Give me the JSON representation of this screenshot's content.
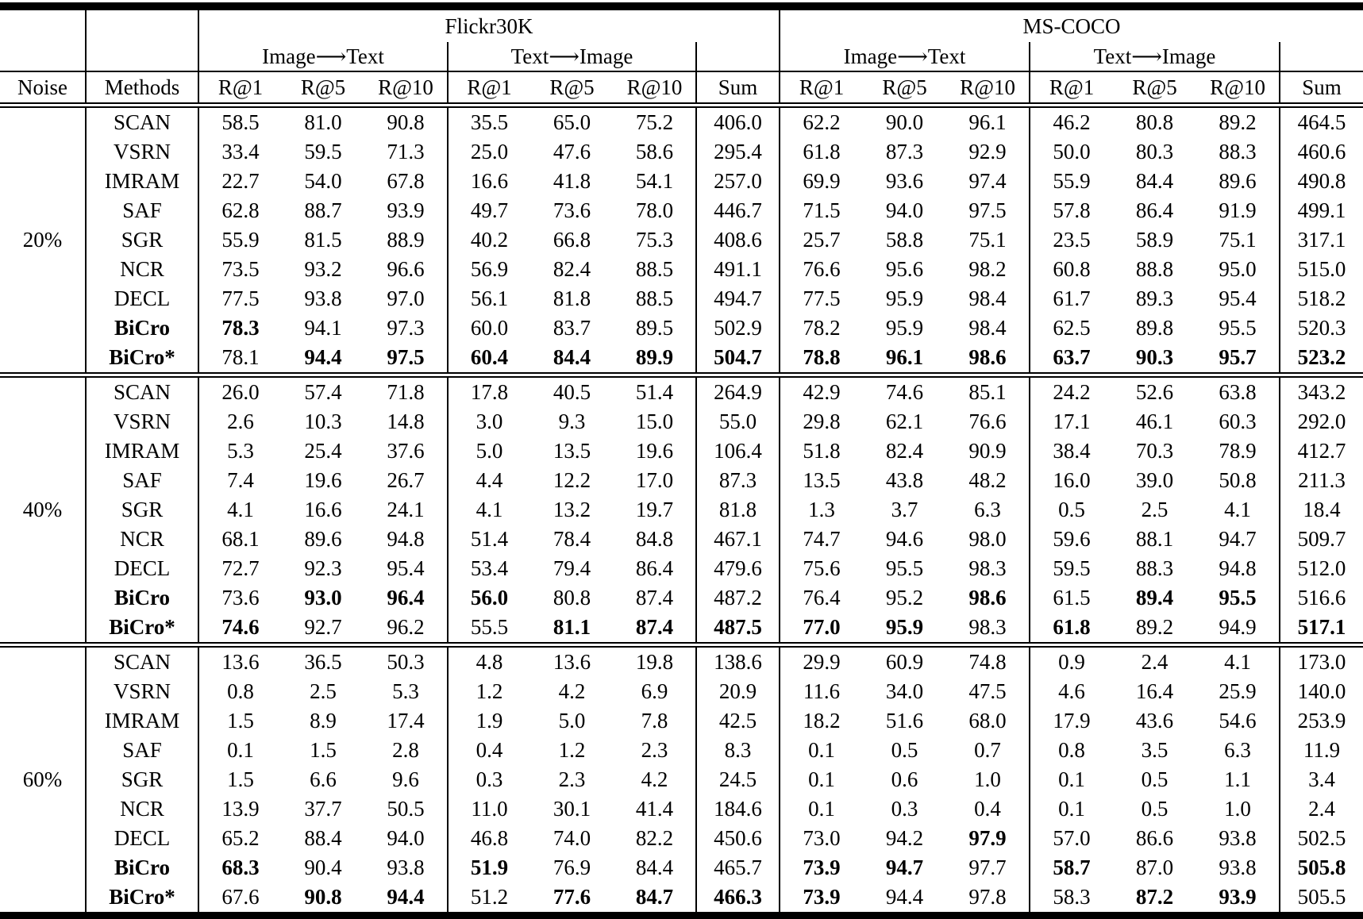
{
  "datasets": [
    "Flickr30K",
    "MS-COCO"
  ],
  "header": {
    "noise": "Noise",
    "methods": "Methods",
    "image_to_text": "Image⟶Text",
    "text_to_image": "Text⟶Image",
    "r1": "R@1",
    "r5": "R@5",
    "r10": "R@10",
    "sum": "Sum"
  },
  "blocks": [
    {
      "noise": "20%",
      "rows": [
        {
          "method": "SCAN",
          "bold_method": false,
          "values": [
            "58.5",
            "81.0",
            "90.8",
            "35.5",
            "65.0",
            "75.2",
            "406.0",
            "62.2",
            "90.0",
            "96.1",
            "46.2",
            "80.8",
            "89.2",
            "464.5"
          ],
          "bold": []
        },
        {
          "method": "VSRN",
          "bold_method": false,
          "values": [
            "33.4",
            "59.5",
            "71.3",
            "25.0",
            "47.6",
            "58.6",
            "295.4",
            "61.8",
            "87.3",
            "92.9",
            "50.0",
            "80.3",
            "88.3",
            "460.6"
          ],
          "bold": []
        },
        {
          "method": "IMRAM",
          "bold_method": false,
          "values": [
            "22.7",
            "54.0",
            "67.8",
            "16.6",
            "41.8",
            "54.1",
            "257.0",
            "69.9",
            "93.6",
            "97.4",
            "55.9",
            "84.4",
            "89.6",
            "490.8"
          ],
          "bold": []
        },
        {
          "method": "SAF",
          "bold_method": false,
          "values": [
            "62.8",
            "88.7",
            "93.9",
            "49.7",
            "73.6",
            "78.0",
            "446.7",
            "71.5",
            "94.0",
            "97.5",
            "57.8",
            "86.4",
            "91.9",
            "499.1"
          ],
          "bold": []
        },
        {
          "method": "SGR",
          "bold_method": false,
          "values": [
            "55.9",
            "81.5",
            "88.9",
            "40.2",
            "66.8",
            "75.3",
            "408.6",
            "25.7",
            "58.8",
            "75.1",
            "23.5",
            "58.9",
            "75.1",
            "317.1"
          ],
          "bold": []
        },
        {
          "method": "NCR",
          "bold_method": false,
          "values": [
            "73.5",
            "93.2",
            "96.6",
            "56.9",
            "82.4",
            "88.5",
            "491.1",
            "76.6",
            "95.6",
            "98.2",
            "60.8",
            "88.8",
            "95.0",
            "515.0"
          ],
          "bold": []
        },
        {
          "method": "DECL",
          "bold_method": false,
          "values": [
            "77.5",
            "93.8",
            "97.0",
            "56.1",
            "81.8",
            "88.5",
            "494.7",
            "77.5",
            "95.9",
            "98.4",
            "61.7",
            "89.3",
            "95.4",
            "518.2"
          ],
          "bold": []
        },
        {
          "method": "BiCro",
          "bold_method": true,
          "values": [
            "78.3",
            "94.1",
            "97.3",
            "60.0",
            "83.7",
            "89.5",
            "502.9",
            "78.2",
            "95.9",
            "98.4",
            "62.5",
            "89.8",
            "95.5",
            "520.3"
          ],
          "bold": [
            0
          ]
        },
        {
          "method": "BiCro*",
          "bold_method": true,
          "values": [
            "78.1",
            "94.4",
            "97.5",
            "60.4",
            "84.4",
            "89.9",
            "504.7",
            "78.8",
            "96.1",
            "98.6",
            "63.7",
            "90.3",
            "95.7",
            "523.2"
          ],
          "bold": [
            1,
            2,
            3,
            4,
            5,
            6,
            7,
            8,
            9,
            10,
            11,
            12,
            13
          ]
        }
      ]
    },
    {
      "noise": "40%",
      "rows": [
        {
          "method": "SCAN",
          "bold_method": false,
          "values": [
            "26.0",
            "57.4",
            "71.8",
            "17.8",
            "40.5",
            "51.4",
            "264.9",
            "42.9",
            "74.6",
            "85.1",
            "24.2",
            "52.6",
            "63.8",
            "343.2"
          ],
          "bold": []
        },
        {
          "method": "VSRN",
          "bold_method": false,
          "values": [
            "2.6",
            "10.3",
            "14.8",
            "3.0",
            "9.3",
            "15.0",
            "55.0",
            "29.8",
            "62.1",
            "76.6",
            "17.1",
            "46.1",
            "60.3",
            "292.0"
          ],
          "bold": []
        },
        {
          "method": "IMRAM",
          "bold_method": false,
          "values": [
            "5.3",
            "25.4",
            "37.6",
            "5.0",
            "13.5",
            "19.6",
            "106.4",
            "51.8",
            "82.4",
            "90.9",
            "38.4",
            "70.3",
            "78.9",
            "412.7"
          ],
          "bold": []
        },
        {
          "method": "SAF",
          "bold_method": false,
          "values": [
            "7.4",
            "19.6",
            "26.7",
            "4.4",
            "12.2",
            "17.0",
            "87.3",
            "13.5",
            "43.8",
            "48.2",
            "16.0",
            "39.0",
            "50.8",
            "211.3"
          ],
          "bold": []
        },
        {
          "method": "SGR",
          "bold_method": false,
          "values": [
            "4.1",
            "16.6",
            "24.1",
            "4.1",
            "13.2",
            "19.7",
            "81.8",
            "1.3",
            "3.7",
            "6.3",
            "0.5",
            "2.5",
            "4.1",
            "18.4"
          ],
          "bold": []
        },
        {
          "method": "NCR",
          "bold_method": false,
          "values": [
            "68.1",
            "89.6",
            "94.8",
            "51.4",
            "78.4",
            "84.8",
            "467.1",
            "74.7",
            "94.6",
            "98.0",
            "59.6",
            "88.1",
            "94.7",
            "509.7"
          ],
          "bold": []
        },
        {
          "method": "DECL",
          "bold_method": false,
          "values": [
            "72.7",
            "92.3",
            "95.4",
            "53.4",
            "79.4",
            "86.4",
            "479.6",
            "75.6",
            "95.5",
            "98.3",
            "59.5",
            "88.3",
            "94.8",
            "512.0"
          ],
          "bold": []
        },
        {
          "method": "BiCro",
          "bold_method": true,
          "values": [
            "73.6",
            "93.0",
            "96.4",
            "56.0",
            "80.8",
            "87.4",
            "487.2",
            "76.4",
            "95.2",
            "98.6",
            "61.5",
            "89.4",
            "95.5",
            "516.6"
          ],
          "bold": [
            1,
            2,
            3,
            9,
            11,
            12
          ]
        },
        {
          "method": "BiCro*",
          "bold_method": true,
          "values": [
            "74.6",
            "92.7",
            "96.2",
            "55.5",
            "81.1",
            "87.4",
            "487.5",
            "77.0",
            "95.9",
            "98.3",
            "61.8",
            "89.2",
            "94.9",
            "517.1"
          ],
          "bold": [
            0,
            4,
            5,
            6,
            7,
            8,
            10,
            13
          ]
        }
      ]
    },
    {
      "noise": "60%",
      "rows": [
        {
          "method": "SCAN",
          "bold_method": false,
          "values": [
            "13.6",
            "36.5",
            "50.3",
            "4.8",
            "13.6",
            "19.8",
            "138.6",
            "29.9",
            "60.9",
            "74.8",
            "0.9",
            "2.4",
            "4.1",
            "173.0"
          ],
          "bold": []
        },
        {
          "method": "VSRN",
          "bold_method": false,
          "values": [
            "0.8",
            "2.5",
            "5.3",
            "1.2",
            "4.2",
            "6.9",
            "20.9",
            "11.6",
            "34.0",
            "47.5",
            "4.6",
            "16.4",
            "25.9",
            "140.0"
          ],
          "bold": []
        },
        {
          "method": "IMRAM",
          "bold_method": false,
          "values": [
            "1.5",
            "8.9",
            "17.4",
            "1.9",
            "5.0",
            "7.8",
            "42.5",
            "18.2",
            "51.6",
            "68.0",
            "17.9",
            "43.6",
            "54.6",
            "253.9"
          ],
          "bold": []
        },
        {
          "method": "SAF",
          "bold_method": false,
          "values": [
            "0.1",
            "1.5",
            "2.8",
            "0.4",
            "1.2",
            "2.3",
            "8.3",
            "0.1",
            "0.5",
            "0.7",
            "0.8",
            "3.5",
            "6.3",
            "11.9"
          ],
          "bold": []
        },
        {
          "method": "SGR",
          "bold_method": false,
          "values": [
            "1.5",
            "6.6",
            "9.6",
            "0.3",
            "2.3",
            "4.2",
            "24.5",
            "0.1",
            "0.6",
            "1.0",
            "0.1",
            "0.5",
            "1.1",
            "3.4"
          ],
          "bold": []
        },
        {
          "method": "NCR",
          "bold_method": false,
          "values": [
            "13.9",
            "37.7",
            "50.5",
            "11.0",
            "30.1",
            "41.4",
            "184.6",
            "0.1",
            "0.3",
            "0.4",
            "0.1",
            "0.5",
            "1.0",
            "2.4"
          ],
          "bold": []
        },
        {
          "method": "DECL",
          "bold_method": false,
          "values": [
            "65.2",
            "88.4",
            "94.0",
            "46.8",
            "74.0",
            "82.2",
            "450.6",
            "73.0",
            "94.2",
            "97.9",
            "57.0",
            "86.6",
            "93.8",
            "502.5"
          ],
          "bold": [
            9
          ]
        },
        {
          "method": "BiCro",
          "bold_method": true,
          "values": [
            "68.3",
            "90.4",
            "93.8",
            "51.9",
            "76.9",
            "84.4",
            "465.7",
            "73.9",
            "94.7",
            "97.7",
            "58.7",
            "87.0",
            "93.8",
            "505.8"
          ],
          "bold": [
            0,
            3,
            7,
            8,
            10,
            13
          ]
        },
        {
          "method": "BiCro*",
          "bold_method": true,
          "values": [
            "67.6",
            "90.8",
            "94.4",
            "51.2",
            "77.6",
            "84.7",
            "466.3",
            "73.9",
            "94.4",
            "97.8",
            "58.3",
            "87.2",
            "93.9",
            "505.5"
          ],
          "bold": [
            1,
            2,
            4,
            5,
            6,
            7,
            11,
            12
          ]
        }
      ]
    }
  ]
}
